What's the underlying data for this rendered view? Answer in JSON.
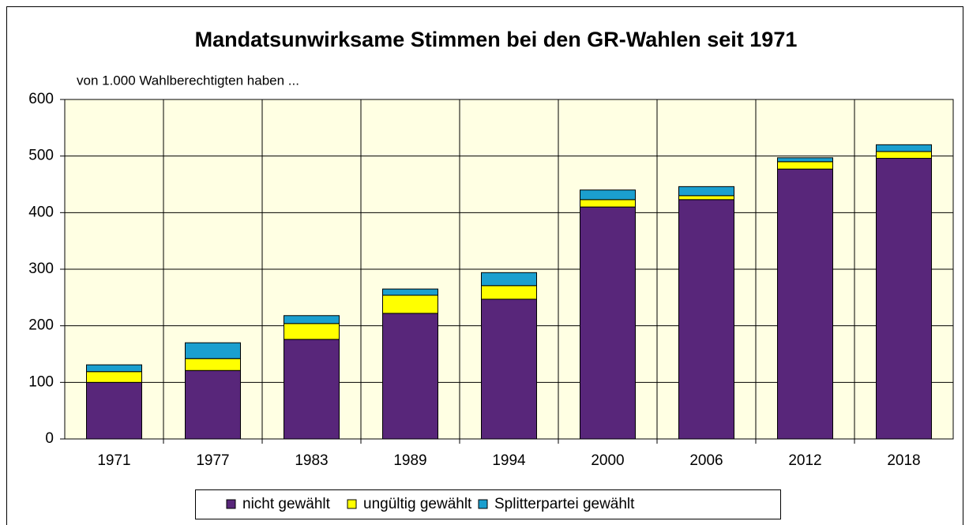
{
  "chart_data": {
    "type": "stacked_bar",
    "title": "Mandatsunwirksame Stimmen bei den GR-Wahlen seit 1971",
    "subtitle": "von 1.000 Wahlberechtigten haben ...",
    "categories": [
      "1971",
      "1977",
      "1983",
      "1989",
      "1994",
      "2000",
      "2006",
      "2012",
      "2018"
    ],
    "series": [
      {
        "name": "nicht gewählt",
        "color": "#58267a",
        "values": [
          100,
          121,
          176,
          222,
          247,
          410,
          423,
          477,
          496
        ]
      },
      {
        "name": "ungültig gewählt",
        "color": "#ffff00",
        "values": [
          19,
          21,
          28,
          32,
          24,
          13,
          7,
          13,
          12
        ]
      },
      {
        "name": "Splitterpartei gewählt",
        "color": "#1b9fcf",
        "values": [
          12,
          28,
          14,
          11,
          23,
          17,
          16,
          7,
          12
        ]
      }
    ],
    "ylim": [
      0,
      600
    ],
    "yticks": [
      0,
      100,
      200,
      300,
      400,
      500,
      600
    ],
    "grid": true,
    "legend": "bottom"
  }
}
